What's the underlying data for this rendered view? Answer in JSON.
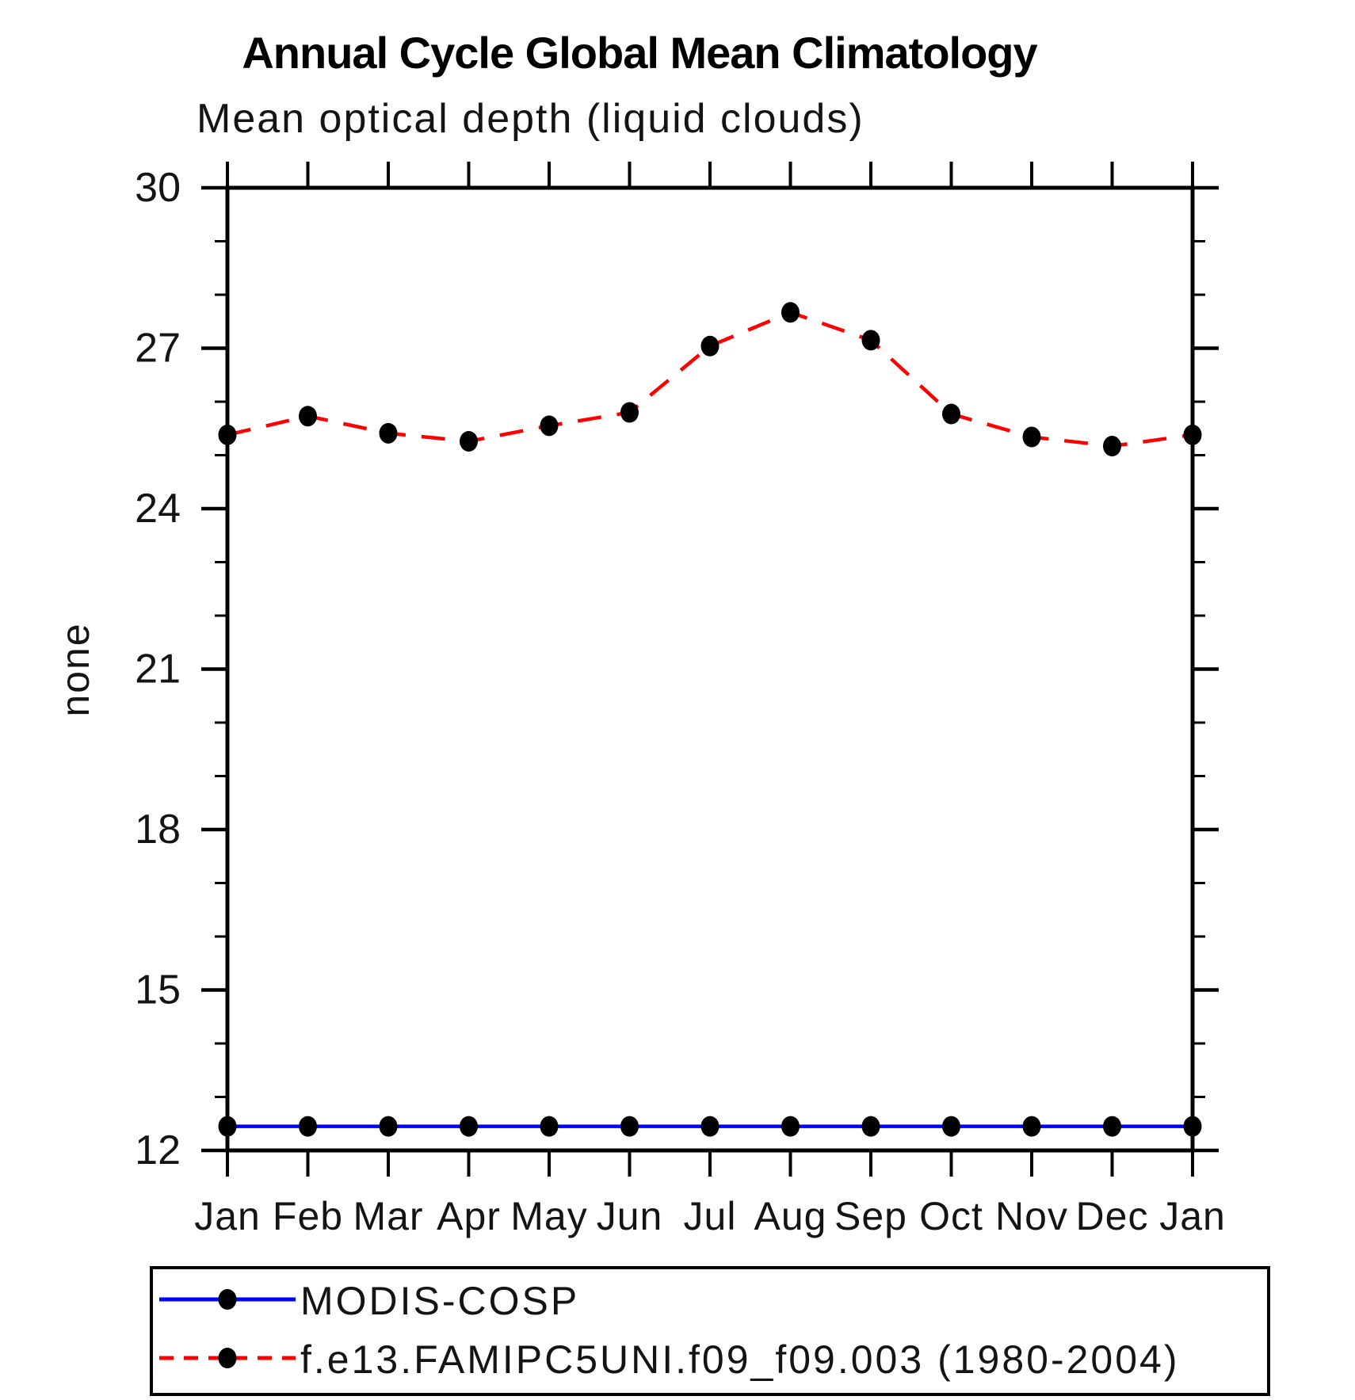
{
  "title": "Annual Cycle Global Mean Climatology",
  "subtitle": "Mean optical depth (liquid clouds)",
  "chart_data": {
    "type": "line",
    "categories": [
      "Jan",
      "Feb",
      "Mar",
      "Apr",
      "May",
      "Jun",
      "Jul",
      "Aug",
      "Sep",
      "Oct",
      "Nov",
      "Dec",
      "Jan"
    ],
    "xlabel": "",
    "ylabel": "none",
    "ylim": [
      12,
      30
    ],
    "yticks": [
      12,
      15,
      18,
      21,
      24,
      27,
      30
    ],
    "y_minor_step": 1,
    "grid": false,
    "legend_position": "bottom-left",
    "series": [
      {
        "name": "MODIS-COSP",
        "color": "#0000ff",
        "line_style": "solid",
        "marker": "filled-circle",
        "marker_color": "#000000",
        "values": [
          12.45,
          12.45,
          12.45,
          12.45,
          12.45,
          12.45,
          12.45,
          12.45,
          12.45,
          12.45,
          12.45,
          12.45,
          12.45
        ]
      },
      {
        "name": "f.e13.FAMIPC5UNI.f09_f09.003 (1980-2004)",
        "color": "#ff0000",
        "line_style": "dashed",
        "marker": "filled-circle",
        "marker_color": "#000000",
        "values": [
          25.38,
          25.73,
          25.41,
          25.26,
          25.55,
          25.8,
          27.04,
          27.67,
          27.15,
          25.77,
          25.34,
          25.17,
          25.38
        ]
      }
    ]
  },
  "colors": {
    "axis": "#000000",
    "text": "#141414",
    "background": "#ffffff"
  }
}
